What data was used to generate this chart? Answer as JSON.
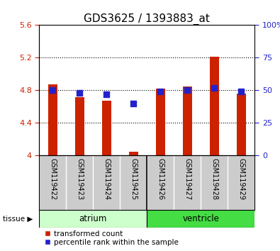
{
  "title": "GDS3625 / 1393883_at",
  "samples": [
    "GSM119422",
    "GSM119423",
    "GSM119424",
    "GSM119425",
    "GSM119426",
    "GSM119427",
    "GSM119428",
    "GSM119429"
  ],
  "red_values": [
    4.87,
    4.72,
    4.67,
    4.05,
    4.82,
    4.85,
    5.21,
    4.76
  ],
  "blue_values": [
    50,
    48,
    47,
    40,
    49,
    50,
    52,
    49
  ],
  "ylim_left": [
    4.0,
    5.6
  ],
  "ylim_right": [
    0,
    100
  ],
  "yticks_left": [
    4.0,
    4.4,
    4.8,
    5.2,
    5.6
  ],
  "yticks_right": [
    0,
    25,
    50,
    75,
    100
  ],
  "ytick_labels_left": [
    "4",
    "4.4",
    "4.8",
    "5.2",
    "5.6"
  ],
  "ytick_labels_right": [
    "0",
    "25",
    "50",
    "75",
    "100%"
  ],
  "gridlines": [
    4.4,
    4.8,
    5.2
  ],
  "bar_color": "#cc2200",
  "dot_color": "#2222cc",
  "baseline": 4.0,
  "atrium_label": "atrium",
  "ventricle_label": "ventricle",
  "tissue_label": "tissue",
  "legend_red": "transformed count",
  "legend_blue": "percentile rank within the sample",
  "bar_width": 0.35,
  "dot_size": 30,
  "plot_bg": "#ffffff",
  "tick_label_bg": "#cccccc",
  "atrium_bg": "#ccffcc",
  "ventricle_bg": "#44dd44",
  "title_fontsize": 11,
  "axis_fontsize": 8,
  "legend_fontsize": 7.5,
  "sample_fontsize": 7
}
